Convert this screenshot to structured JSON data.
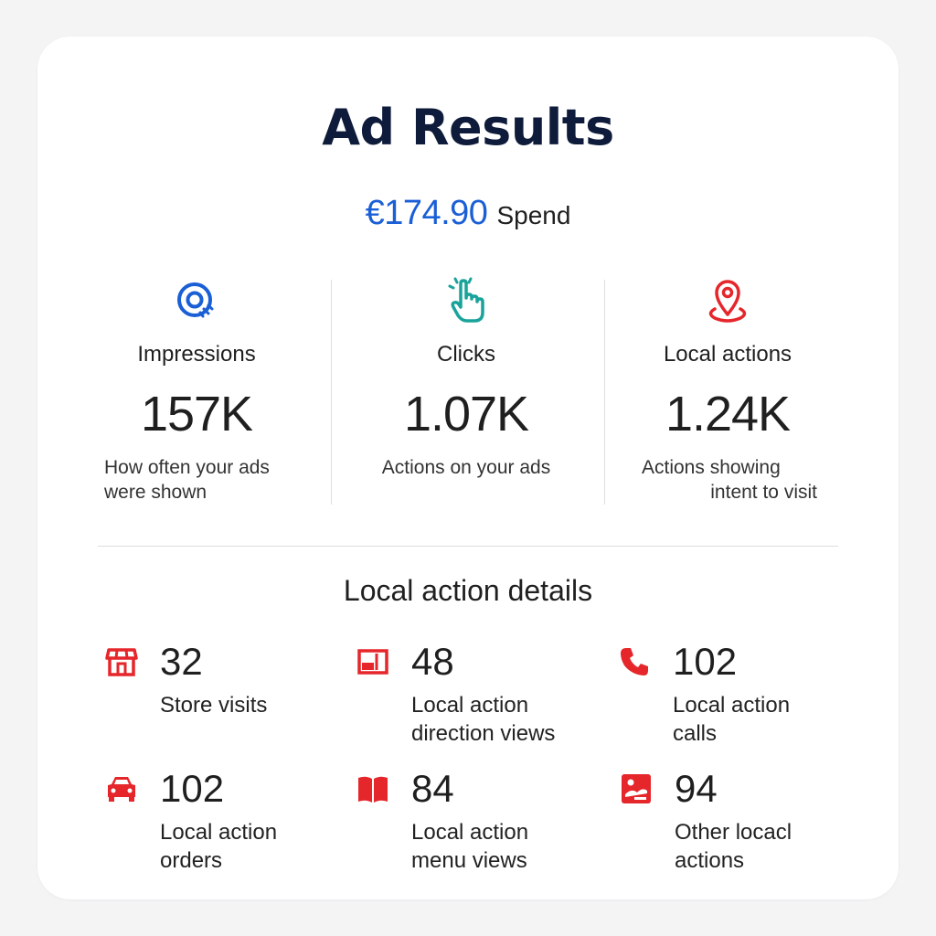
{
  "title": "Ad Results",
  "spend": {
    "amount": "€174.90",
    "label": "Spend"
  },
  "metrics": [
    {
      "icon": "impressions-eye-icon",
      "label": "Impressions",
      "value": "157K",
      "description": "How often your ads\nwere shown"
    },
    {
      "icon": "tap-click-icon",
      "label": "Clicks",
      "value": "1.07K",
      "description": "Actions on your ads"
    },
    {
      "icon": "location-pin-icon",
      "label": "Local actions",
      "value": "1.24K",
      "description_line1": "Actions showing",
      "description_line2": "intent to visit"
    }
  ],
  "details_title": "Local action details",
  "details": [
    {
      "icon": "store-icon",
      "value": "32",
      "label": "Store visits"
    },
    {
      "icon": "directions-panel-icon",
      "value": "48",
      "label": "Local action\ndirection views"
    },
    {
      "icon": "phone-icon",
      "value": "102",
      "label": "Local action\ncalls"
    },
    {
      "icon": "car-icon",
      "value": "102",
      "label": "Local action\norders"
    },
    {
      "icon": "menu-book-icon",
      "value": "84",
      "label": "Local action\nmenu views"
    },
    {
      "icon": "other-actions-icon",
      "value": "94",
      "label": "Other locacl\nactions"
    }
  ],
  "colors": {
    "accent_blue": "#1a5fd6",
    "teal": "#1aa39a",
    "red": "#e5262b",
    "title": "#0e1b3a"
  }
}
